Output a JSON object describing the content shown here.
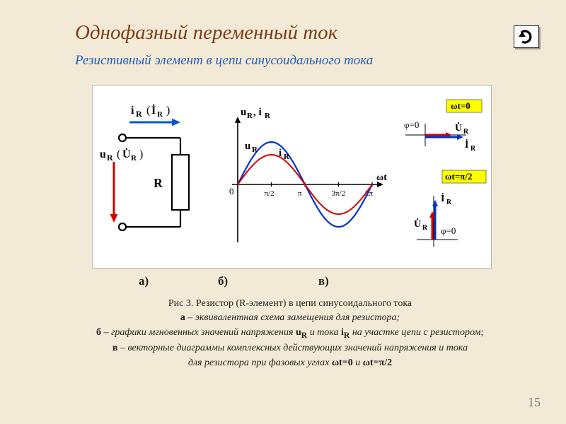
{
  "title": "Однофазный переменный ток",
  "subtitle": "Резистивный элемент в цепи синусоидального тока",
  "page_number": "15",
  "figure": {
    "sublabels": {
      "a": "а)",
      "b": "б)",
      "c": "в)"
    },
    "circuit": {
      "i_label": "i",
      "i_sub": "R",
      "i_complex": "İ",
      "u_label": "u",
      "u_sub": "R",
      "u_complex": "U̇",
      "R_label": "R",
      "arrow_i_color": "#0055d6",
      "arrow_u_color": "#d40000",
      "stroke_color": "#000000",
      "stroke_width": 2.2
    },
    "waveform": {
      "type": "line",
      "x_axis_label": "ωt",
      "y_axis_label": "uᴿ, iᴿ",
      "origin_label": "0",
      "xticks": [
        "π/2",
        "π",
        "3π/2",
        "2π"
      ],
      "u_series_label": "u",
      "u_series_sub": "R",
      "i_series_label": "i",
      "i_series_sub": "R",
      "u_color": "#0033cc",
      "i_color": "#d40000",
      "u_amplitude": 60,
      "i_amplitude": 42,
      "u_line_width": 2.2,
      "i_line_width": 2.0,
      "axis_color": "#000000"
    },
    "phasors": {
      "badge_bg": "#ffff00",
      "badge1_text": "ωt=0",
      "badge2_text": "ωt=π/2",
      "phi_label": "φ=0",
      "u_label": "U̇",
      "u_sub": "R",
      "i_label": "İ",
      "i_sub": "R",
      "u_color": "#d40000",
      "i_color": "#0033cc",
      "axis_color": "#000000"
    }
  },
  "caption": {
    "fig_title": "Рис 3.  Резистор  (R-элемент) в цепи синусоидального тока",
    "line_a_pre": "а",
    "line_a": " – эквивалентная схема замещения для резистора;",
    "line_b_pre": "б",
    "line_b_1": " – графики мгновенных значений напряжения ",
    "line_b_u": "u",
    "line_b_usub": "R",
    "line_b_2": "  и тока ",
    "line_b_i": "i",
    "line_b_isub": "R",
    "line_b_3": " на участке цепи с резистором;",
    "line_c_pre": "в",
    "line_c_1": " – векторные диаграммы комплексных действующих значений напряжения  и тока",
    "line_c_2a": "для резистора при фазовых углах ",
    "line_c_wt1": "ωt=0",
    "line_c_and": " и  ",
    "line_c_wt2": "ωt=π/2"
  }
}
